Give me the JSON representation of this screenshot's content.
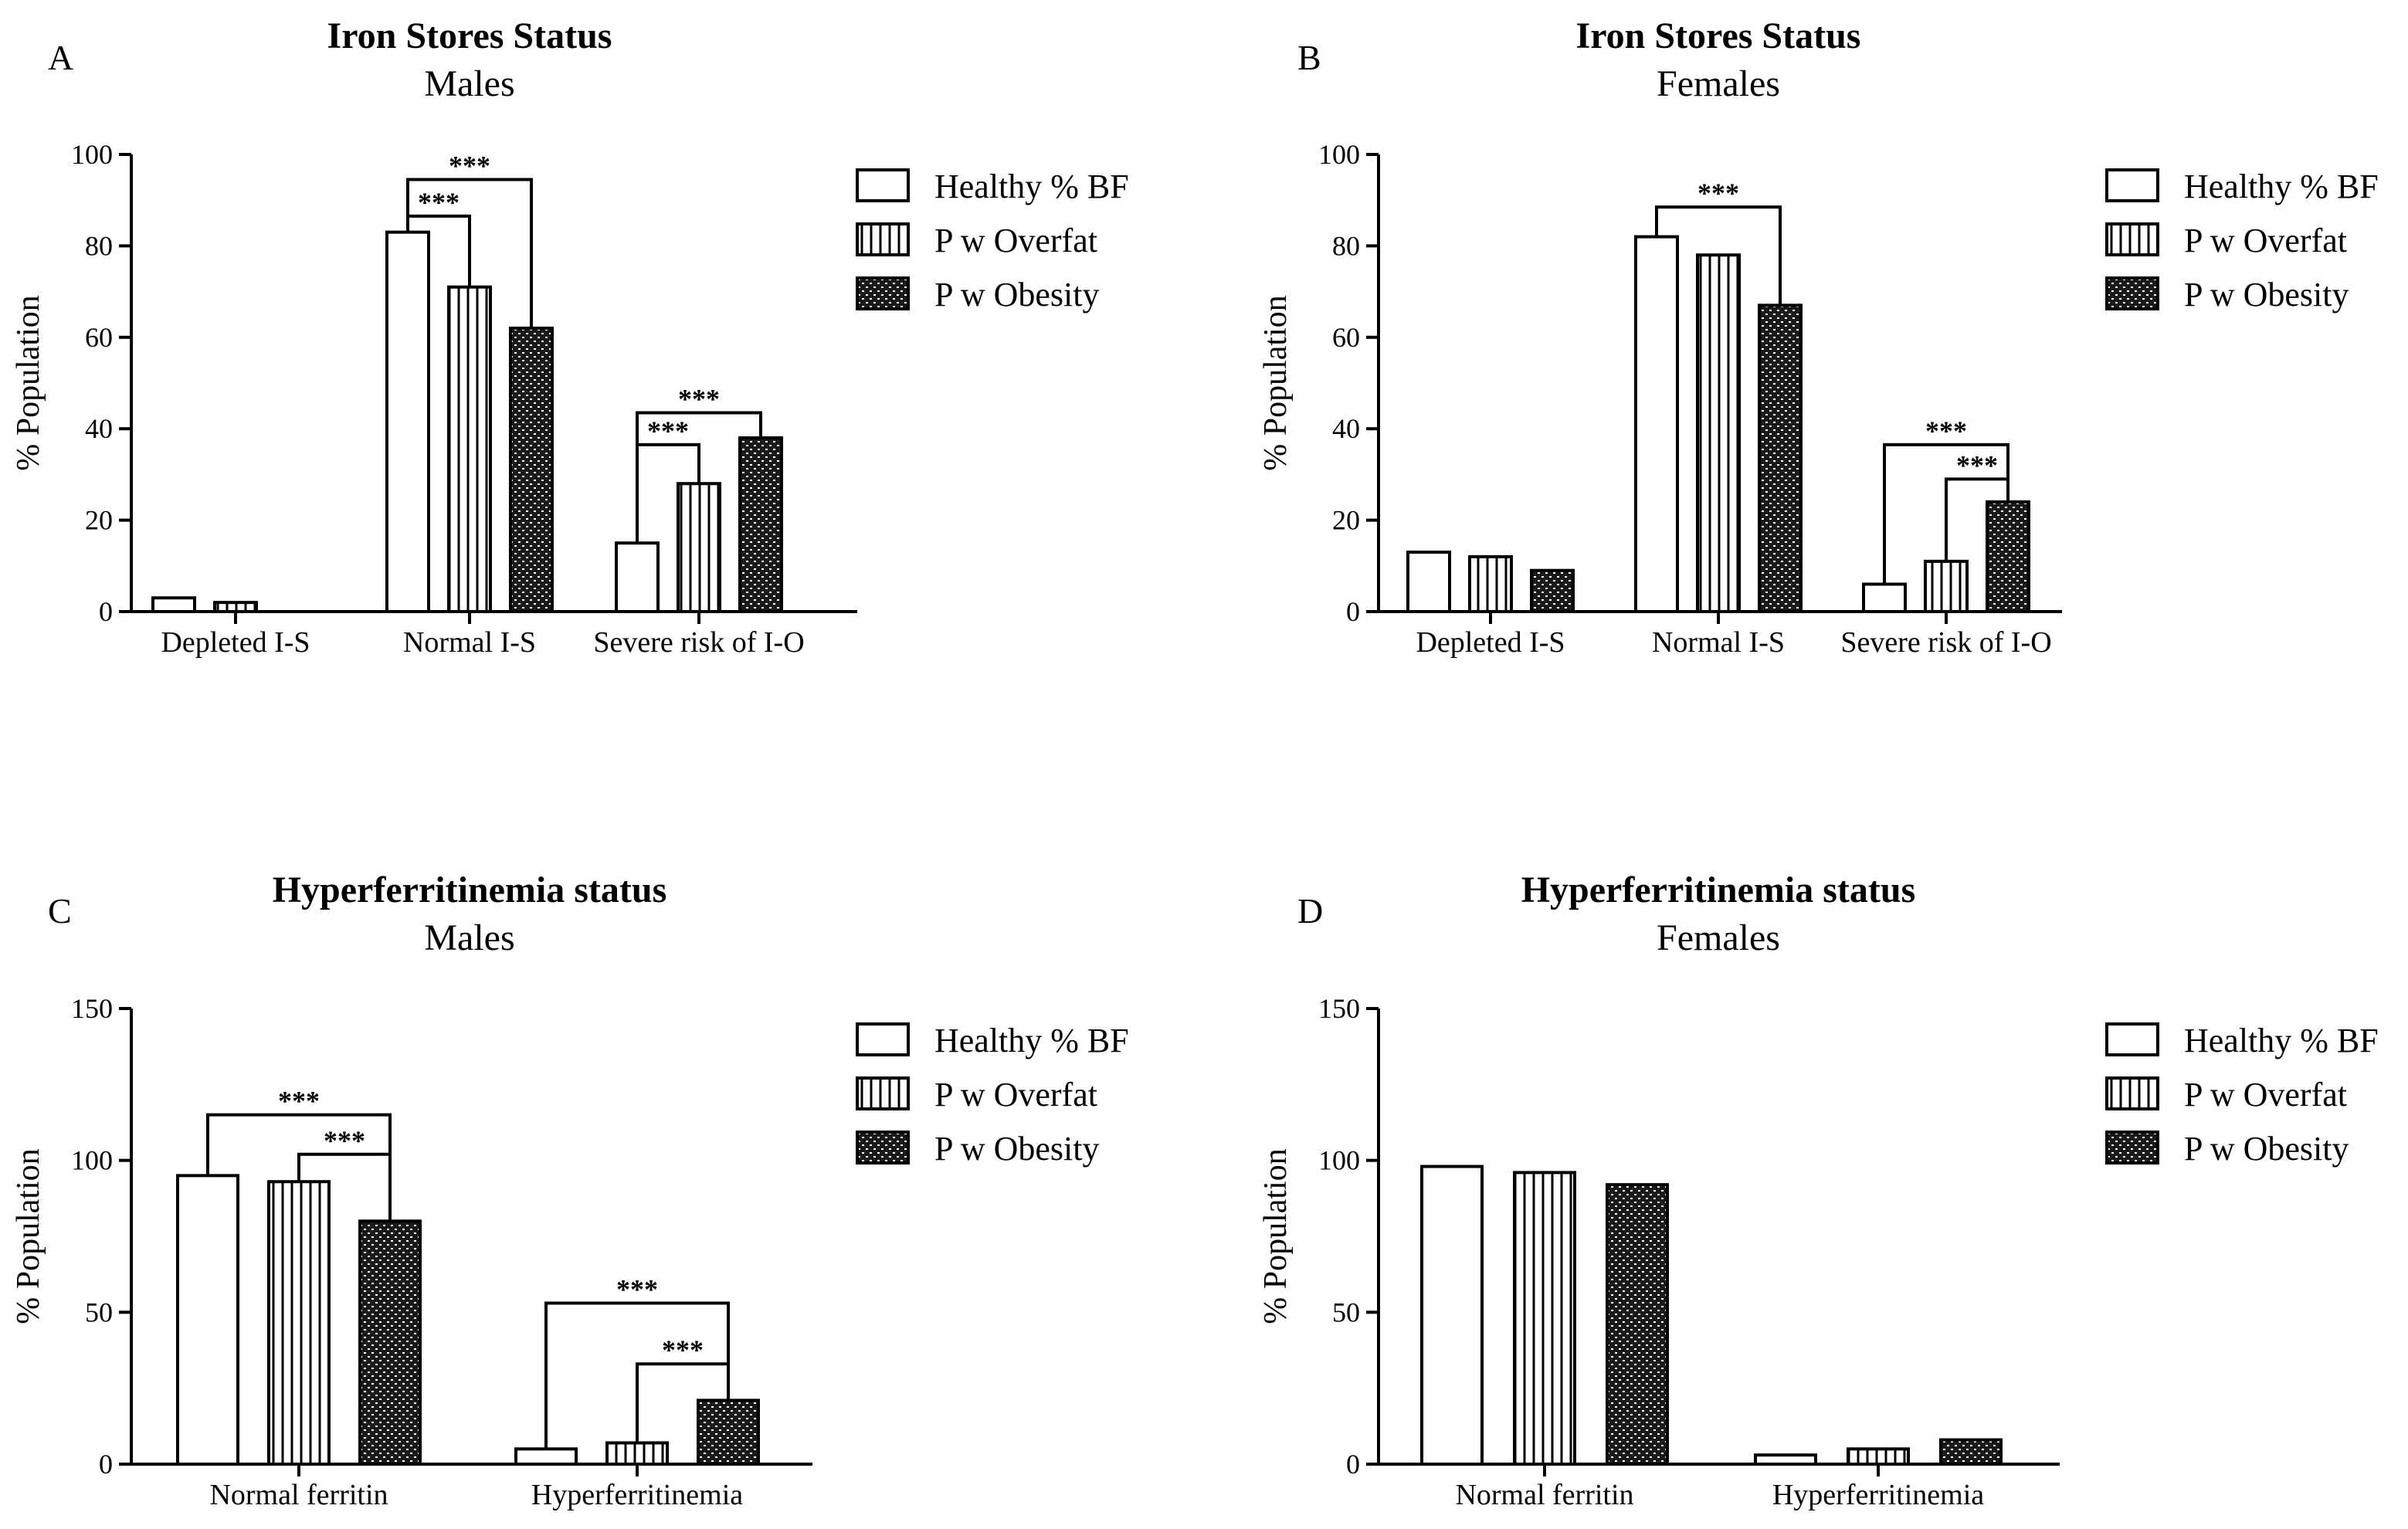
{
  "figure": {
    "legend_labels": [
      "Healthy % BF",
      "P w Overfat",
      "P w Obesity"
    ],
    "colors": {
      "bar_stroke": "#000000",
      "background": "#ffffff"
    }
  },
  "chart_data": [
    {
      "panel": "A",
      "type": "bar",
      "title": "Iron Stores Status",
      "subtitle": "Males",
      "xlabel": "",
      "ylabel": "% Population",
      "ylim": [
        0,
        100
      ],
      "yticks": [
        0,
        20,
        40,
        60,
        80,
        100
      ],
      "categories": [
        "Depleted I-S",
        "Normal I-S",
        "Severe risk of I-O"
      ],
      "series": [
        {
          "name": "Healthy % BF",
          "pattern": "empty",
          "values": [
            3,
            83,
            15
          ]
        },
        {
          "name": "P w Overfat",
          "pattern": "vertical",
          "values": [
            2,
            71,
            28
          ]
        },
        {
          "name": "P w Obesity",
          "pattern": "dense",
          "values": [
            0,
            62,
            38
          ]
        }
      ],
      "annotations": [
        {
          "category": 1,
          "from": 0,
          "to": 1,
          "label": "***",
          "y": 86.5
        },
        {
          "category": 1,
          "from": 0,
          "to": 2,
          "label": "***",
          "y": 94.5
        },
        {
          "category": 2,
          "from": 0,
          "to": 1,
          "label": "***",
          "y": 36.5
        },
        {
          "category": 2,
          "from": 0,
          "to": 2,
          "label": "***",
          "y": 43.5
        }
      ]
    },
    {
      "panel": "B",
      "type": "bar",
      "title": "Iron Stores Status",
      "subtitle": "Females",
      "xlabel": "",
      "ylabel": "% Population",
      "ylim": [
        0,
        100
      ],
      "yticks": [
        0,
        20,
        40,
        60,
        80,
        100
      ],
      "categories": [
        "Depleted I-S",
        "Normal I-S",
        "Severe risk of I-O"
      ],
      "series": [
        {
          "name": "Healthy % BF",
          "pattern": "empty",
          "values": [
            13,
            82,
            6
          ]
        },
        {
          "name": "P w Overfat",
          "pattern": "vertical",
          "values": [
            12,
            78,
            11
          ]
        },
        {
          "name": "P w Obesity",
          "pattern": "dense",
          "values": [
            9,
            67,
            24
          ]
        }
      ],
      "annotations": [
        {
          "category": 1,
          "from": 0,
          "to": 2,
          "label": "***",
          "y": 88.5
        },
        {
          "category": 2,
          "from": 1,
          "to": 2,
          "label": "***",
          "y": 29
        },
        {
          "category": 2,
          "from": 0,
          "to": 2,
          "label": "***",
          "y": 36.5
        }
      ]
    },
    {
      "panel": "C",
      "type": "bar",
      "title": "Hyperferritinemia status",
      "subtitle": "Males",
      "xlabel": "",
      "ylabel": "% Population",
      "ylim": [
        0,
        150
      ],
      "yticks": [
        0,
        50,
        100,
        150
      ],
      "categories": [
        "Normal ferritin",
        "Hyperferritinemia"
      ],
      "series": [
        {
          "name": "Healthy % BF",
          "pattern": "empty",
          "values": [
            95,
            5
          ]
        },
        {
          "name": "P w Overfat",
          "pattern": "vertical",
          "values": [
            93,
            7
          ]
        },
        {
          "name": "P w Obesity",
          "pattern": "dense",
          "values": [
            80,
            21
          ]
        }
      ],
      "annotations": [
        {
          "category": 0,
          "from": 1,
          "to": 2,
          "label": "***",
          "y": 102
        },
        {
          "category": 0,
          "from": 0,
          "to": 2,
          "label": "***",
          "y": 115
        },
        {
          "category": 1,
          "from": 1,
          "to": 2,
          "label": "***",
          "y": 33
        },
        {
          "category": 1,
          "from": 0,
          "to": 2,
          "label": "***",
          "y": 53
        }
      ]
    },
    {
      "panel": "D",
      "type": "bar",
      "title": "Hyperferritinemia status",
      "subtitle": "Females",
      "xlabel": "",
      "ylabel": "% Population",
      "ylim": [
        0,
        150
      ],
      "yticks": [
        0,
        50,
        100,
        150
      ],
      "categories": [
        "Normal ferritin",
        "Hyperferritinemia"
      ],
      "series": [
        {
          "name": "Healthy % BF",
          "pattern": "empty",
          "values": [
            98,
            3
          ]
        },
        {
          "name": "P w Overfat",
          "pattern": "vertical",
          "values": [
            96,
            5
          ]
        },
        {
          "name": "P w Obesity",
          "pattern": "dense",
          "values": [
            92,
            8
          ]
        }
      ],
      "annotations": []
    }
  ]
}
